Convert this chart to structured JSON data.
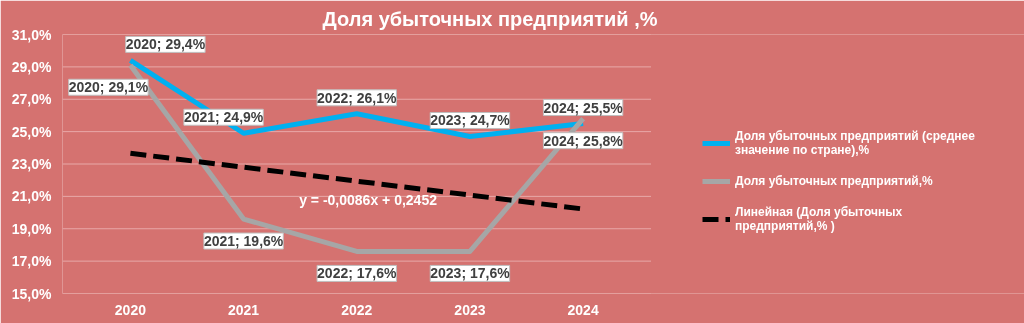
{
  "chart_data": {
    "type": "line",
    "title": "Доля убыточных предприятий ,%",
    "categories": [
      "2020",
      "2021",
      "2022",
      "2023",
      "2024"
    ],
    "series": [
      {
        "name": "Доля убыточных предприятий (среднее значение по стране),%",
        "color": "#00b0f0",
        "values": [
          29.4,
          24.9,
          26.1,
          24.7,
          25.5
        ],
        "value_labels": [
          "2020; 29,4%",
          "2021; 24,9%",
          "2022; 26,1%",
          "2023; 24,7%",
          "2024; 25,5%"
        ]
      },
      {
        "name": "Доля убыточных предприятий,%",
        "color": "#a6a6a6",
        "values": [
          29.1,
          19.6,
          17.6,
          17.6,
          25.8
        ],
        "value_labels": [
          "2020; 29,1%",
          "2021; 19,6%",
          "2022; 17,6%",
          "2023; 17,6%",
          "2024; 25,8%"
        ]
      },
      {
        "name": "Линейная (Доля убыточных предприятий,% )",
        "color": "#000000",
        "line_style": "dashed",
        "values": [
          23.66,
          22.8,
          21.94,
          21.08,
          20.22
        ]
      }
    ],
    "ylim": [
      15,
      31
    ],
    "yticks": [
      {
        "value": 15,
        "label": "15,0%"
      },
      {
        "value": 17,
        "label": "17,0%"
      },
      {
        "value": 19,
        "label": "19,0%"
      },
      {
        "value": 21,
        "label": "21,0%"
      },
      {
        "value": 23,
        "label": "23,0%"
      },
      {
        "value": 25,
        "label": "25,0%"
      },
      {
        "value": 27,
        "label": "27,0%"
      },
      {
        "value": 29,
        "label": "29,0%"
      },
      {
        "value": 31,
        "label": "31,0%"
      }
    ],
    "annotations": [
      "y = -0,0086x + 0,2452"
    ],
    "grid": "y",
    "legend": "right",
    "marker": "none",
    "line_style": "solid"
  }
}
